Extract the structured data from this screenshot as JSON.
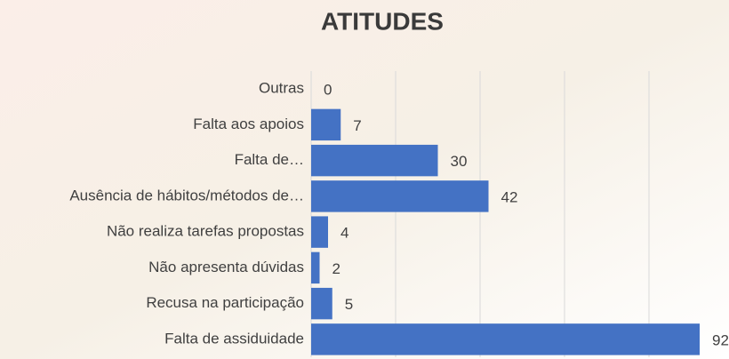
{
  "chart_data": {
    "type": "barh",
    "title": "ATITUDES",
    "categories": [
      "Outras",
      "Falta aos apoios",
      "Falta de…",
      "Ausência de hábitos/métodos de…",
      "Não realiza tarefas propostas",
      "Não apresenta dúvidas",
      "Recusa na participação",
      "Falta de assiduidade"
    ],
    "values": [
      0,
      7,
      30,
      42,
      4,
      2,
      5,
      92
    ],
    "color": "#4472c4",
    "xlim": [
      0,
      100
    ],
    "xticks": [
      0,
      20,
      40,
      60,
      80
    ],
    "grid": true
  }
}
